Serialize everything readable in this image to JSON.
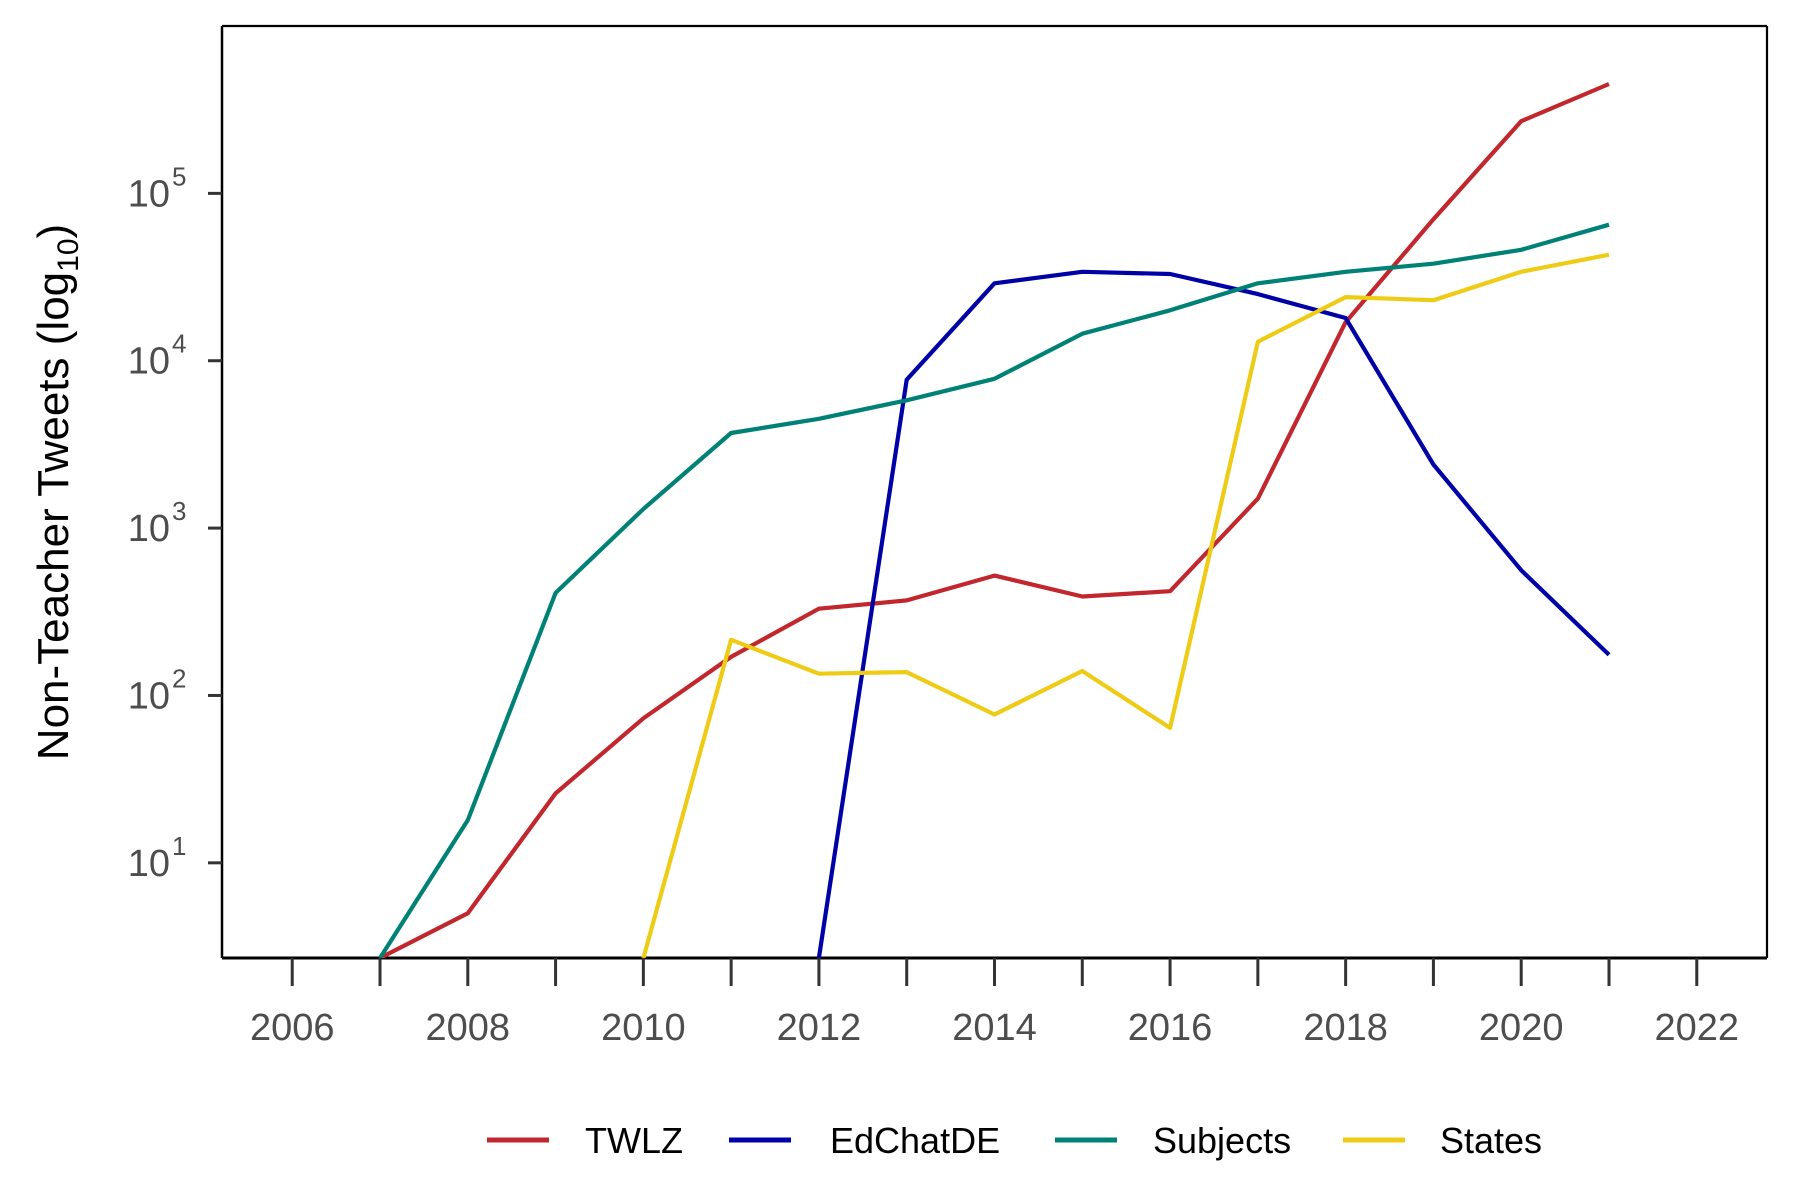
{
  "chart_data": {
    "type": "line",
    "title": "",
    "xlabel": "",
    "ylabel": "Non-Teacher Tweets",
    "ylabel_suffix_base": "log",
    "ylabel_suffix_sub": "10",
    "y_scale": "log10",
    "xlim": [
      2005.2,
      2022.8
    ],
    "ylim": [
      2.7,
      1000000
    ],
    "x_ticks": [
      2006,
      2008,
      2010,
      2012,
      2014,
      2016,
      2018,
      2020,
      2022
    ],
    "x_tick_labels": [
      "2006",
      "2008",
      "2010",
      "2012",
      "2014",
      "2016",
      "2018",
      "2020",
      "2022"
    ],
    "x_minor_ticks": [
      2007,
      2009,
      2011,
      2013,
      2015,
      2017,
      2019,
      2021
    ],
    "y_ticks": [
      {
        "value": 10,
        "base": "10",
        "exp": "1"
      },
      {
        "value": 100,
        "base": "10",
        "exp": "2"
      },
      {
        "value": 1000,
        "base": "10",
        "exp": "3"
      },
      {
        "value": 10000,
        "base": "10",
        "exp": "4"
      },
      {
        "value": 100000,
        "base": "10",
        "exp": "5"
      }
    ],
    "grid": false,
    "legend_position": "bottom",
    "series": [
      {
        "name": "TWLZ",
        "color": "#c1272d",
        "x": [
          2007,
          2008,
          2009,
          2010,
          2011,
          2012,
          2013,
          2014,
          2015,
          2016,
          2017,
          2018,
          2019,
          2020,
          2021
        ],
        "values": [
          2.7,
          5,
          26,
          73,
          170,
          330,
          370,
          520,
          390,
          420,
          1500,
          17000,
          70000,
          270000,
          450000
        ]
      },
      {
        "name": "EdChatDE",
        "color": "#0000a7",
        "x": [
          2012,
          2013,
          2014,
          2015,
          2016,
          2017,
          2018,
          2019,
          2020,
          2021
        ],
        "values": [
          2.7,
          7700,
          29000,
          34000,
          33000,
          25000,
          18000,
          2400,
          560,
          175
        ]
      },
      {
        "name": "Subjects",
        "color": "#008176",
        "x": [
          2007,
          2008,
          2009,
          2010,
          2011,
          2012,
          2013,
          2014,
          2015,
          2016,
          2017,
          2018,
          2019,
          2020,
          2021
        ],
        "values": [
          2.7,
          18,
          410,
          1300,
          3700,
          4500,
          5800,
          7800,
          14500,
          20000,
          29000,
          34000,
          38000,
          46000,
          65000
        ]
      },
      {
        "name": "States",
        "color": "#eecc16",
        "x": [
          2010,
          2011,
          2012,
          2013,
          2014,
          2015,
          2016,
          2017,
          2018,
          2019,
          2020,
          2021
        ],
        "values": [
          2.7,
          215,
          135,
          138,
          77,
          140,
          64,
          13000,
          24000,
          23000,
          34000,
          43000
        ]
      }
    ]
  }
}
